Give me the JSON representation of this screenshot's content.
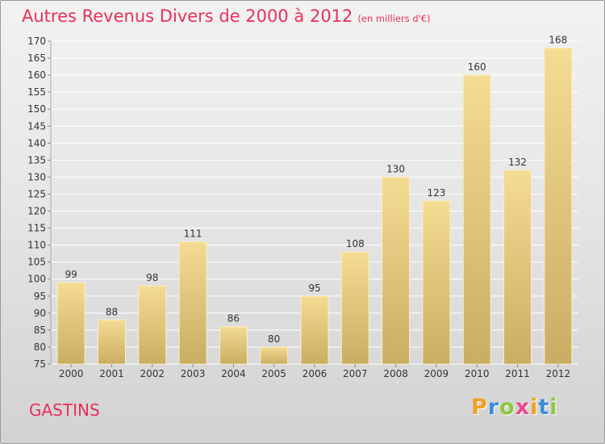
{
  "header": {
    "title": "Autres Revenus Divers de 2000 à 2012",
    "subtitle": "(en milliers d'€)"
  },
  "footer": {
    "commune": "GASTINS",
    "brand": "Proxiti",
    "brand_letters": [
      {
        "char": "P",
        "color": "#f0a020"
      },
      {
        "char": "r",
        "color": "#3a8fd6"
      },
      {
        "char": "o",
        "color": "#8ec63f"
      },
      {
        "char": "x",
        "color": "#e84a8a"
      },
      {
        "char": "i",
        "color": "#f0a020"
      },
      {
        "char": "t",
        "color": "#3a8fd6"
      },
      {
        "char": "i",
        "color": "#8ec63f"
      }
    ]
  },
  "colors": {
    "accent": "#e8305a",
    "bar_top": "#f5dc93",
    "bar_bottom": "#c9ad62",
    "grid": "#ffffff",
    "axis_text": "#333333"
  },
  "chart_data": {
    "type": "bar",
    "categories": [
      "2000",
      "2001",
      "2002",
      "2003",
      "2004",
      "2005",
      "2006",
      "2007",
      "2008",
      "2009",
      "2010",
      "2011",
      "2012"
    ],
    "values": [
      99,
      88,
      98,
      111,
      86,
      80,
      95,
      108,
      130,
      123,
      160,
      132,
      168
    ],
    "title": "Autres Revenus Divers de 2000 à 2012",
    "subtitle": "(en milliers d'€)",
    "xlabel": "",
    "ylabel": "",
    "ylim": [
      75,
      170
    ],
    "ytick_step": 5,
    "grid": true,
    "data_labels": true
  }
}
